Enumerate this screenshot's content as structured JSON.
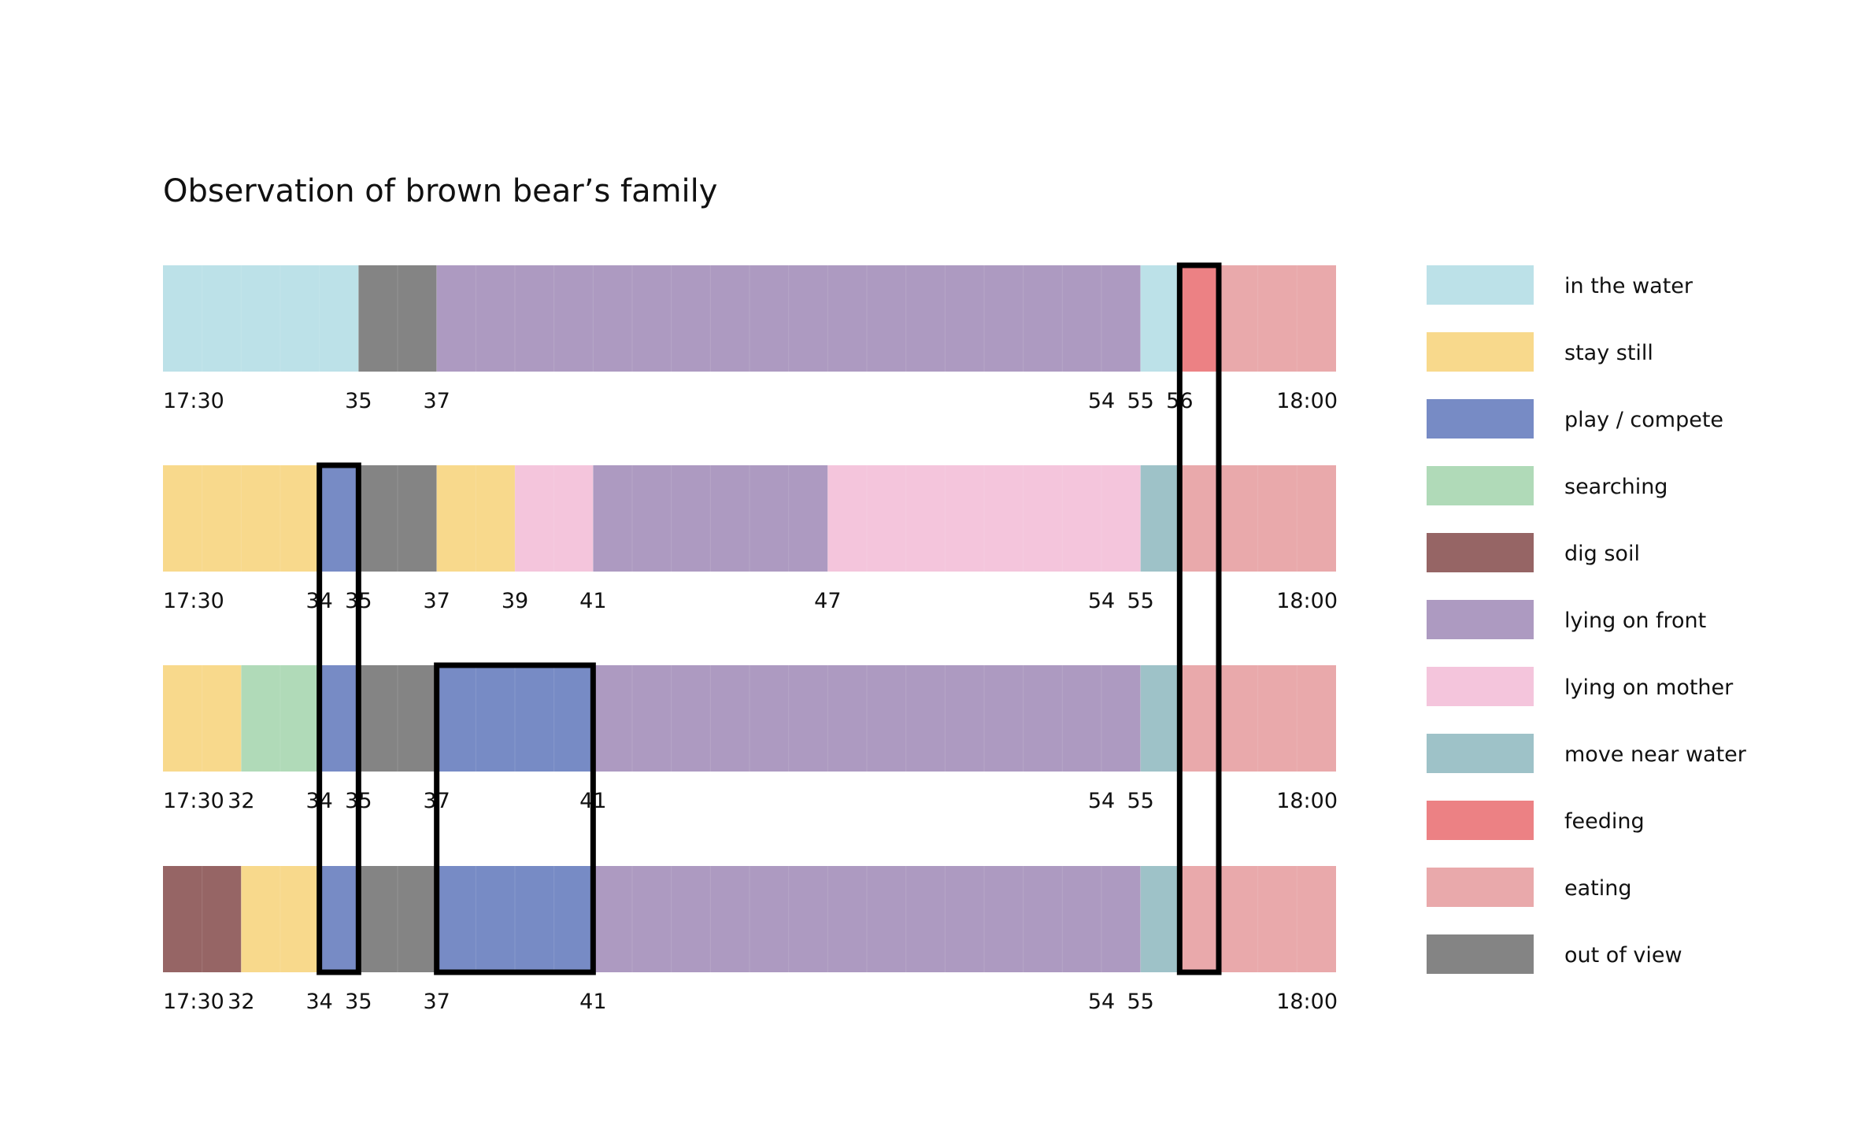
{
  "chart_data": {
    "type": "timeline",
    "title": "Observation of brown bear’s family",
    "time_unit": "minute after 17:00",
    "x_range": [
      30,
      60
    ],
    "categories": [
      {
        "key": "in_water",
        "label": "in the water",
        "color": "#bce1e8"
      },
      {
        "key": "stay_still",
        "label": "stay still",
        "color": "#f8d98c"
      },
      {
        "key": "play",
        "label": "play / compete",
        "color": "#778bc5"
      },
      {
        "key": "searching",
        "label": "searching",
        "color": "#b0dab8"
      },
      {
        "key": "dig_soil",
        "label": "dig soil",
        "color": "#966565"
      },
      {
        "key": "lying_front",
        "label": "lying on front",
        "color": "#ad9ac1"
      },
      {
        "key": "lying_mother",
        "label": "lying on mother",
        "color": "#f4c5dc"
      },
      {
        "key": "move_water",
        "label": "move near water",
        "color": "#9ec2c8"
      },
      {
        "key": "feeding",
        "label": "feeding",
        "color": "#ec8184"
      },
      {
        "key": "eating",
        "label": "eating",
        "color": "#e9a9ab"
      },
      {
        "key": "out_of_view",
        "label": "out of view",
        "color": "#848484"
      }
    ],
    "rows": [
      {
        "segments": [
          {
            "start": 30,
            "end": 35,
            "category": "in_water"
          },
          {
            "start": 35,
            "end": 37,
            "category": "out_of_view"
          },
          {
            "start": 37,
            "end": 55,
            "category": "lying_front"
          },
          {
            "start": 55,
            "end": 56,
            "category": "in_water"
          },
          {
            "start": 56,
            "end": 57,
            "category": "feeding"
          },
          {
            "start": 57,
            "end": 60,
            "category": "eating"
          }
        ],
        "ticks": [
          {
            "t": 30,
            "label": "17:30"
          },
          {
            "t": 35,
            "label": "35"
          },
          {
            "t": 37,
            "label": "37"
          },
          {
            "t": 54,
            "label": "54"
          },
          {
            "t": 55,
            "label": "55"
          },
          {
            "t": 56,
            "label": "56"
          },
          {
            "t": 60,
            "label": "18:00"
          }
        ]
      },
      {
        "segments": [
          {
            "start": 30,
            "end": 34,
            "category": "stay_still"
          },
          {
            "start": 34,
            "end": 35,
            "category": "play"
          },
          {
            "start": 35,
            "end": 37,
            "category": "out_of_view"
          },
          {
            "start": 37,
            "end": 39,
            "category": "stay_still"
          },
          {
            "start": 39,
            "end": 41,
            "category": "lying_mother"
          },
          {
            "start": 41,
            "end": 47,
            "category": "lying_front"
          },
          {
            "start": 47,
            "end": 55,
            "category": "lying_mother"
          },
          {
            "start": 55,
            "end": 56,
            "category": "move_water"
          },
          {
            "start": 56,
            "end": 60,
            "category": "eating"
          }
        ],
        "ticks": [
          {
            "t": 30,
            "label": "17:30"
          },
          {
            "t": 34,
            "label": "34"
          },
          {
            "t": 35,
            "label": "35"
          },
          {
            "t": 37,
            "label": "37"
          },
          {
            "t": 39,
            "label": "39"
          },
          {
            "t": 41,
            "label": "41"
          },
          {
            "t": 47,
            "label": "47"
          },
          {
            "t": 54,
            "label": "54"
          },
          {
            "t": 55,
            "label": "55"
          },
          {
            "t": 60,
            "label": "18:00"
          }
        ]
      },
      {
        "segments": [
          {
            "start": 30,
            "end": 32,
            "category": "stay_still"
          },
          {
            "start": 32,
            "end": 34,
            "category": "searching"
          },
          {
            "start": 34,
            "end": 35,
            "category": "play"
          },
          {
            "start": 35,
            "end": 37,
            "category": "out_of_view"
          },
          {
            "start": 37,
            "end": 41,
            "category": "play"
          },
          {
            "start": 41,
            "end": 55,
            "category": "lying_front"
          },
          {
            "start": 55,
            "end": 56,
            "category": "move_water"
          },
          {
            "start": 56,
            "end": 60,
            "category": "eating"
          }
        ],
        "ticks": [
          {
            "t": 30,
            "label": "17:30"
          },
          {
            "t": 32,
            "label": "32"
          },
          {
            "t": 34,
            "label": "34"
          },
          {
            "t": 35,
            "label": "35"
          },
          {
            "t": 37,
            "label": "37"
          },
          {
            "t": 41,
            "label": "41"
          },
          {
            "t": 54,
            "label": "54"
          },
          {
            "t": 55,
            "label": "55"
          },
          {
            "t": 60,
            "label": "18:00"
          }
        ]
      },
      {
        "segments": [
          {
            "start": 30,
            "end": 32,
            "category": "dig_soil"
          },
          {
            "start": 32,
            "end": 34,
            "category": "stay_still"
          },
          {
            "start": 34,
            "end": 35,
            "category": "play"
          },
          {
            "start": 35,
            "end": 37,
            "category": "out_of_view"
          },
          {
            "start": 37,
            "end": 41,
            "category": "play"
          },
          {
            "start": 41,
            "end": 55,
            "category": "lying_front"
          },
          {
            "start": 55,
            "end": 56,
            "category": "move_water"
          },
          {
            "start": 56,
            "end": 60,
            "category": "eating"
          }
        ],
        "ticks": [
          {
            "t": 30,
            "label": "17:30"
          },
          {
            "t": 32,
            "label": "32"
          },
          {
            "t": 34,
            "label": "34"
          },
          {
            "t": 35,
            "label": "35"
          },
          {
            "t": 37,
            "label": "37"
          },
          {
            "t": 41,
            "label": "41"
          },
          {
            "t": 54,
            "label": "54"
          },
          {
            "t": 55,
            "label": "55"
          },
          {
            "t": 60,
            "label": "18:00"
          }
        ]
      }
    ],
    "highlights": [
      {
        "start": 34,
        "end": 35,
        "rows": [
          2,
          4
        ]
      },
      {
        "start": 37,
        "end": 41,
        "rows": [
          3,
          4
        ]
      },
      {
        "start": 56,
        "end": 57,
        "rows": [
          1,
          4
        ]
      }
    ]
  }
}
